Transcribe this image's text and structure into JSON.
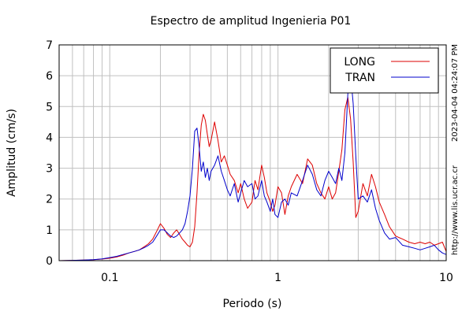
{
  "chart_data": {
    "type": "line",
    "title": "Espectro de amplitud Ingenieria P01",
    "xlabel": "Periodo (s)",
    "ylabel": "Amplitud (cm/s)",
    "xscale": "log",
    "xlim": [
      0.05,
      10
    ],
    "ylim": [
      0,
      7
    ],
    "x_ticks": [
      0.1,
      1,
      10
    ],
    "x_tick_labels": [
      "0.1",
      "1",
      "10"
    ],
    "y_ticks": [
      0,
      1,
      2,
      3,
      4,
      5,
      6,
      7
    ],
    "y_tick_labels": [
      "0",
      "1",
      "2",
      "3",
      "4",
      "5",
      "6",
      "7"
    ],
    "grid": true,
    "legend_position": "top-right",
    "timestamp": "2023-04-04 04:24:07 PM",
    "source_url": "http://www.lis.ucr.ac.cr",
    "series": [
      {
        "name": "LONG",
        "color": "#dd0000",
        "x": [
          0.05,
          0.06,
          0.07,
          0.08,
          0.09,
          0.1,
          0.11,
          0.12,
          0.13,
          0.14,
          0.15,
          0.16,
          0.17,
          0.18,
          0.19,
          0.2,
          0.21,
          0.22,
          0.23,
          0.24,
          0.25,
          0.26,
          0.27,
          0.28,
          0.29,
          0.3,
          0.31,
          0.32,
          0.33,
          0.34,
          0.35,
          0.36,
          0.37,
          0.38,
          0.39,
          0.4,
          0.42,
          0.44,
          0.46,
          0.48,
          0.5,
          0.52,
          0.55,
          0.58,
          0.6,
          0.63,
          0.66,
          0.7,
          0.73,
          0.76,
          0.8,
          0.83,
          0.86,
          0.9,
          0.93,
          0.96,
          1.0,
          1.05,
          1.1,
          1.15,
          1.2,
          1.3,
          1.4,
          1.5,
          1.6,
          1.7,
          1.8,
          1.9,
          2.0,
          2.1,
          2.2,
          2.3,
          2.4,
          2.5,
          2.6,
          2.7,
          2.8,
          2.9,
          3.0,
          3.2,
          3.4,
          3.6,
          3.8,
          4.0,
          4.3,
          4.6,
          5.0,
          5.5,
          6.0,
          6.5,
          7.0,
          7.5,
          8.0,
          8.5,
          9.0,
          9.5,
          10.0
        ],
        "y": [
          0.0,
          0.01,
          0.02,
          0.03,
          0.05,
          0.08,
          0.12,
          0.18,
          0.25,
          0.3,
          0.35,
          0.45,
          0.55,
          0.7,
          0.95,
          1.2,
          1.05,
          0.85,
          0.75,
          0.9,
          1.0,
          0.85,
          0.7,
          0.6,
          0.5,
          0.45,
          0.6,
          1.1,
          2.2,
          3.5,
          4.4,
          4.75,
          4.55,
          4.1,
          3.7,
          3.9,
          4.5,
          3.9,
          3.2,
          3.4,
          3.1,
          2.8,
          2.6,
          2.2,
          2.5,
          2.0,
          1.7,
          1.9,
          2.6,
          2.3,
          3.1,
          2.7,
          2.2,
          1.9,
          1.6,
          1.8,
          2.4,
          2.2,
          1.5,
          2.1,
          2.4,
          2.8,
          2.5,
          3.3,
          3.1,
          2.5,
          2.2,
          2.0,
          2.4,
          2.0,
          2.2,
          2.9,
          3.6,
          4.9,
          5.3,
          4.6,
          3.2,
          1.4,
          1.6,
          2.5,
          2.1,
          2.8,
          2.4,
          1.9,
          1.5,
          1.1,
          0.8,
          0.7,
          0.6,
          0.55,
          0.6,
          0.55,
          0.6,
          0.5,
          0.55,
          0.6,
          0.3
        ]
      },
      {
        "name": "TRAN",
        "color": "#0000cc",
        "x": [
          0.05,
          0.06,
          0.07,
          0.08,
          0.09,
          0.1,
          0.11,
          0.12,
          0.13,
          0.14,
          0.15,
          0.16,
          0.17,
          0.18,
          0.19,
          0.2,
          0.21,
          0.22,
          0.23,
          0.24,
          0.25,
          0.26,
          0.27,
          0.28,
          0.29,
          0.3,
          0.31,
          0.32,
          0.33,
          0.34,
          0.35,
          0.36,
          0.37,
          0.38,
          0.39,
          0.4,
          0.42,
          0.44,
          0.46,
          0.48,
          0.5,
          0.52,
          0.55,
          0.58,
          0.6,
          0.63,
          0.66,
          0.7,
          0.73,
          0.76,
          0.8,
          0.83,
          0.86,
          0.9,
          0.93,
          0.96,
          1.0,
          1.05,
          1.1,
          1.15,
          1.2,
          1.3,
          1.4,
          1.5,
          1.6,
          1.7,
          1.8,
          1.9,
          2.0,
          2.1,
          2.2,
          2.3,
          2.4,
          2.5,
          2.6,
          2.7,
          2.8,
          2.9,
          3.0,
          3.2,
          3.4,
          3.6,
          3.8,
          4.0,
          4.3,
          4.6,
          5.0,
          5.5,
          6.0,
          6.5,
          7.0,
          7.5,
          8.0,
          8.5,
          9.0,
          9.5,
          10.0
        ],
        "y": [
          0.0,
          0.01,
          0.02,
          0.03,
          0.06,
          0.1,
          0.14,
          0.2,
          0.25,
          0.3,
          0.35,
          0.42,
          0.5,
          0.6,
          0.8,
          1.0,
          1.0,
          0.9,
          0.8,
          0.75,
          0.8,
          0.9,
          1.0,
          1.2,
          1.6,
          2.1,
          3.0,
          4.2,
          4.3,
          3.7,
          2.9,
          3.2,
          2.7,
          3.0,
          2.6,
          2.9,
          3.1,
          3.4,
          2.9,
          2.6,
          2.3,
          2.1,
          2.5,
          1.9,
          2.2,
          2.6,
          2.4,
          2.5,
          2.0,
          2.1,
          2.6,
          2.1,
          1.9,
          1.6,
          2.0,
          1.5,
          1.4,
          1.9,
          2.0,
          1.8,
          2.2,
          2.1,
          2.6,
          3.1,
          2.8,
          2.3,
          2.1,
          2.6,
          2.9,
          2.7,
          2.5,
          3.0,
          2.6,
          3.5,
          5.4,
          6.05,
          5.1,
          3.4,
          2.0,
          2.1,
          1.9,
          2.3,
          1.7,
          1.3,
          0.9,
          0.7,
          0.75,
          0.5,
          0.45,
          0.4,
          0.35,
          0.4,
          0.45,
          0.5,
          0.35,
          0.25,
          0.2
        ]
      }
    ]
  }
}
